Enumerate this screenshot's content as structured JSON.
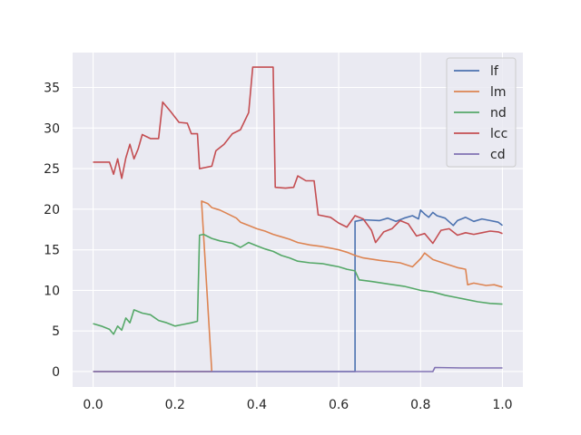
{
  "chart_data": {
    "type": "line",
    "title": "",
    "xlabel": "",
    "ylabel": "",
    "xlim": [
      -0.05,
      1.05
    ],
    "ylim": [
      -1.9,
      39.3
    ],
    "grid": true,
    "background": "#eaeaf2",
    "legend_position": "top-right",
    "x_ticks": [
      {
        "value": 0.0,
        "label": "0.0"
      },
      {
        "value": 0.2,
        "label": "0.2"
      },
      {
        "value": 0.4,
        "label": "0.4"
      },
      {
        "value": 0.6,
        "label": "0.6"
      },
      {
        "value": 0.8,
        "label": "0.8"
      },
      {
        "value": 1.0,
        "label": "1.0"
      }
    ],
    "y_ticks": [
      {
        "value": 0,
        "label": "0"
      },
      {
        "value": 5,
        "label": "5"
      },
      {
        "value": 10,
        "label": "10"
      },
      {
        "value": 15,
        "label": "15"
      },
      {
        "value": 20,
        "label": "20"
      },
      {
        "value": 25,
        "label": "25"
      },
      {
        "value": 30,
        "label": "30"
      },
      {
        "value": 35,
        "label": "35"
      }
    ],
    "series": [
      {
        "name": "lf",
        "color": "#4c72b0",
        "points": [
          [
            0.0,
            0
          ],
          [
            0.64,
            0
          ],
          [
            0.64,
            18.5
          ],
          [
            0.66,
            18.7
          ],
          [
            0.7,
            18.6
          ],
          [
            0.72,
            18.9
          ],
          [
            0.74,
            18.5
          ],
          [
            0.76,
            18.9
          ],
          [
            0.78,
            19.2
          ],
          [
            0.795,
            18.8
          ],
          [
            0.8,
            19.9
          ],
          [
            0.81,
            19.4
          ],
          [
            0.82,
            19.0
          ],
          [
            0.83,
            19.6
          ],
          [
            0.84,
            19.2
          ],
          [
            0.86,
            18.9
          ],
          [
            0.88,
            18.0
          ],
          [
            0.89,
            18.6
          ],
          [
            0.91,
            19.0
          ],
          [
            0.93,
            18.5
          ],
          [
            0.95,
            18.8
          ],
          [
            0.97,
            18.6
          ],
          [
            0.99,
            18.4
          ],
          [
            1.0,
            18.0
          ]
        ]
      },
      {
        "name": "lm",
        "color": "#dd8452",
        "points": [
          [
            0.0,
            0
          ],
          [
            0.29,
            0
          ],
          [
            0.29,
            0
          ],
          [
            0.265,
            21.0
          ],
          [
            0.28,
            20.7
          ],
          [
            0.29,
            20.2
          ],
          [
            0.31,
            19.9
          ],
          [
            0.33,
            19.4
          ],
          [
            0.35,
            18.9
          ],
          [
            0.36,
            18.4
          ],
          [
            0.38,
            18.0
          ],
          [
            0.4,
            17.6
          ],
          [
            0.42,
            17.3
          ],
          [
            0.44,
            16.9
          ],
          [
            0.46,
            16.6
          ],
          [
            0.48,
            16.3
          ],
          [
            0.5,
            15.9
          ],
          [
            0.53,
            15.6
          ],
          [
            0.56,
            15.4
          ],
          [
            0.58,
            15.2
          ],
          [
            0.6,
            15.0
          ],
          [
            0.62,
            14.7
          ],
          [
            0.64,
            14.3
          ],
          [
            0.66,
            14.0
          ],
          [
            0.7,
            13.7
          ],
          [
            0.75,
            13.4
          ],
          [
            0.78,
            12.9
          ],
          [
            0.8,
            13.9
          ],
          [
            0.81,
            14.6
          ],
          [
            0.83,
            13.8
          ],
          [
            0.86,
            13.3
          ],
          [
            0.89,
            12.8
          ],
          [
            0.91,
            12.6
          ],
          [
            0.915,
            10.7
          ],
          [
            0.93,
            10.9
          ],
          [
            0.96,
            10.6
          ],
          [
            0.98,
            10.7
          ],
          [
            1.0,
            10.4
          ]
        ]
      },
      {
        "name": "nd",
        "color": "#55a868",
        "points": [
          [
            0.0,
            5.9
          ],
          [
            0.02,
            5.6
          ],
          [
            0.04,
            5.2
          ],
          [
            0.05,
            4.6
          ],
          [
            0.06,
            5.6
          ],
          [
            0.07,
            5.1
          ],
          [
            0.08,
            6.6
          ],
          [
            0.09,
            6.0
          ],
          [
            0.1,
            7.6
          ],
          [
            0.12,
            7.2
          ],
          [
            0.14,
            7.0
          ],
          [
            0.16,
            6.3
          ],
          [
            0.18,
            6.0
          ],
          [
            0.2,
            5.6
          ],
          [
            0.22,
            5.8
          ],
          [
            0.24,
            6.0
          ],
          [
            0.255,
            6.2
          ],
          [
            0.26,
            16.8
          ],
          [
            0.27,
            16.9
          ],
          [
            0.29,
            16.4
          ],
          [
            0.31,
            16.1
          ],
          [
            0.34,
            15.8
          ],
          [
            0.36,
            15.3
          ],
          [
            0.38,
            15.9
          ],
          [
            0.4,
            15.5
          ],
          [
            0.42,
            15.1
          ],
          [
            0.44,
            14.8
          ],
          [
            0.46,
            14.3
          ],
          [
            0.48,
            14.0
          ],
          [
            0.5,
            13.6
          ],
          [
            0.53,
            13.4
          ],
          [
            0.56,
            13.3
          ],
          [
            0.58,
            13.1
          ],
          [
            0.6,
            12.9
          ],
          [
            0.62,
            12.6
          ],
          [
            0.64,
            12.4
          ],
          [
            0.65,
            11.3
          ],
          [
            0.68,
            11.1
          ],
          [
            0.72,
            10.8
          ],
          [
            0.76,
            10.5
          ],
          [
            0.8,
            10.0
          ],
          [
            0.83,
            9.8
          ],
          [
            0.86,
            9.4
          ],
          [
            0.89,
            9.1
          ],
          [
            0.91,
            8.9
          ],
          [
            0.94,
            8.6
          ],
          [
            0.97,
            8.4
          ],
          [
            1.0,
            8.3
          ]
        ]
      },
      {
        "name": "lcc",
        "color": "#c44e52",
        "points": [
          [
            0.0,
            25.8
          ],
          [
            0.04,
            25.8
          ],
          [
            0.05,
            24.3
          ],
          [
            0.06,
            26.2
          ],
          [
            0.07,
            23.8
          ],
          [
            0.08,
            26.3
          ],
          [
            0.09,
            28.0
          ],
          [
            0.1,
            26.2
          ],
          [
            0.11,
            27.4
          ],
          [
            0.12,
            29.2
          ],
          [
            0.14,
            28.7
          ],
          [
            0.16,
            28.7
          ],
          [
            0.17,
            33.2
          ],
          [
            0.19,
            32.0
          ],
          [
            0.21,
            30.7
          ],
          [
            0.23,
            30.6
          ],
          [
            0.24,
            29.3
          ],
          [
            0.255,
            29.3
          ],
          [
            0.26,
            25.0
          ],
          [
            0.28,
            25.2
          ],
          [
            0.29,
            25.3
          ],
          [
            0.3,
            27.2
          ],
          [
            0.32,
            28.0
          ],
          [
            0.34,
            29.3
          ],
          [
            0.36,
            29.8
          ],
          [
            0.38,
            31.9
          ],
          [
            0.39,
            37.5
          ],
          [
            0.42,
            37.5
          ],
          [
            0.44,
            37.5
          ],
          [
            0.445,
            22.7
          ],
          [
            0.47,
            22.6
          ],
          [
            0.49,
            22.7
          ],
          [
            0.5,
            24.1
          ],
          [
            0.52,
            23.5
          ],
          [
            0.54,
            23.5
          ],
          [
            0.55,
            19.3
          ],
          [
            0.58,
            19.0
          ],
          [
            0.6,
            18.3
          ],
          [
            0.62,
            17.8
          ],
          [
            0.64,
            19.2
          ],
          [
            0.66,
            18.8
          ],
          [
            0.68,
            17.4
          ],
          [
            0.69,
            15.9
          ],
          [
            0.71,
            17.2
          ],
          [
            0.73,
            17.6
          ],
          [
            0.75,
            18.6
          ],
          [
            0.77,
            18.2
          ],
          [
            0.79,
            16.7
          ],
          [
            0.81,
            17.0
          ],
          [
            0.83,
            15.8
          ],
          [
            0.85,
            17.4
          ],
          [
            0.87,
            17.6
          ],
          [
            0.89,
            16.8
          ],
          [
            0.91,
            17.1
          ],
          [
            0.93,
            16.9
          ],
          [
            0.95,
            17.1
          ],
          [
            0.97,
            17.3
          ],
          [
            0.99,
            17.2
          ],
          [
            1.0,
            17.0
          ]
        ]
      },
      {
        "name": "cd",
        "color": "#8172b3",
        "points": [
          [
            0.0,
            0
          ],
          [
            0.83,
            0
          ],
          [
            0.835,
            0.5
          ],
          [
            0.9,
            0.45
          ],
          [
            1.0,
            0.45
          ]
        ]
      }
    ]
  }
}
